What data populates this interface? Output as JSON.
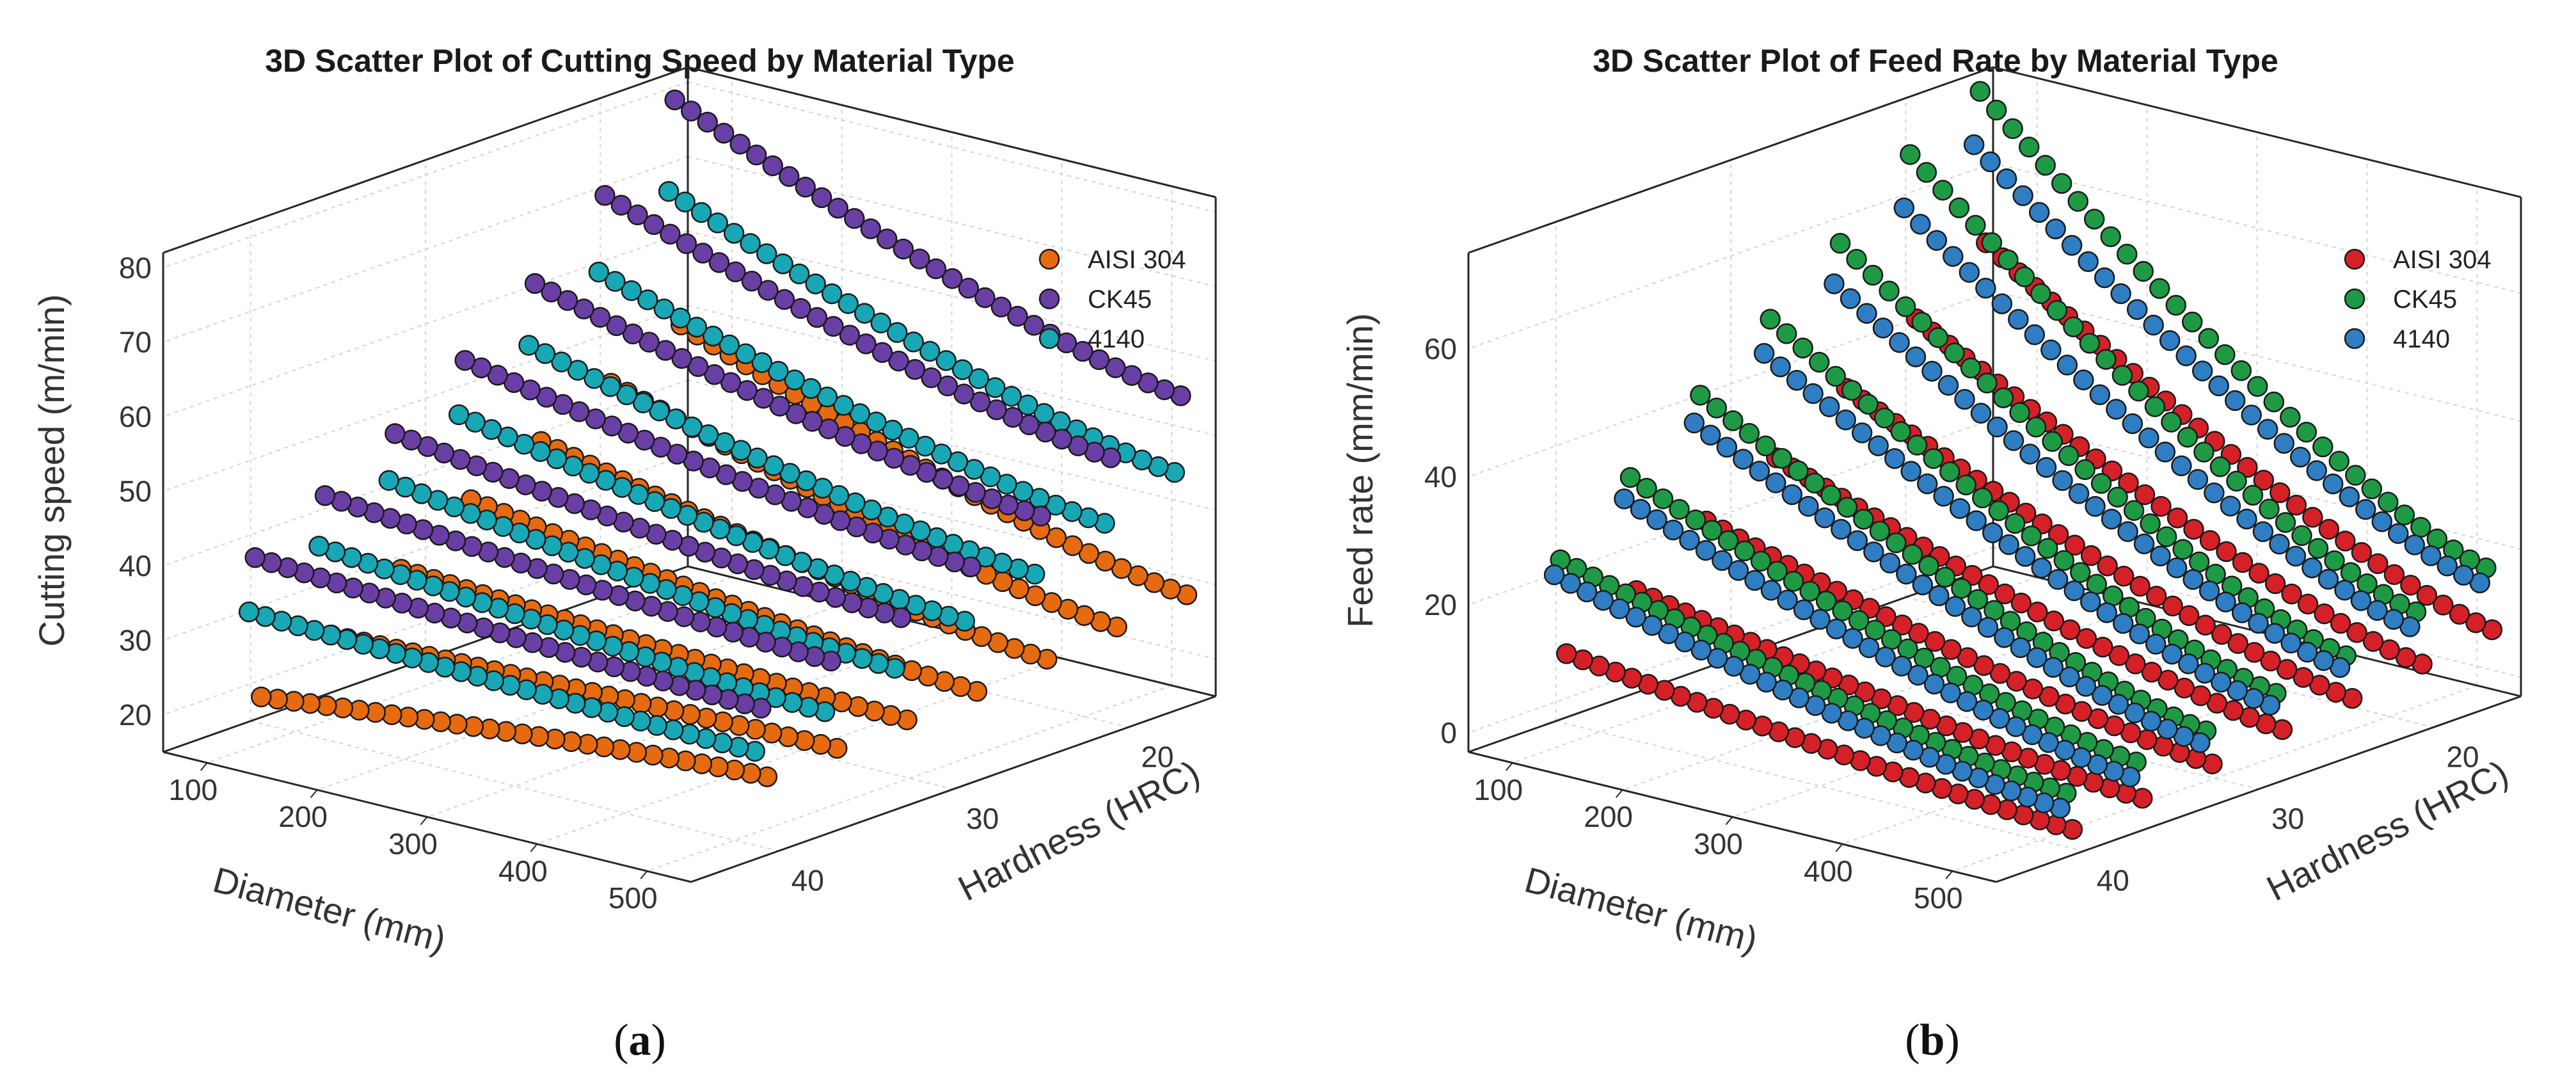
{
  "chart_data": [
    {
      "type": "scatter",
      "title": "3D Scatter Plot of Cutting Speed by Material Type",
      "xlabel": "Diameter (mm)",
      "ylabel": "Hardness (HRC)",
      "zlabel": "Cutting speed (m/min)",
      "xlim": [
        60,
        540
      ],
      "ylim": [
        15,
        45
      ],
      "zlim": [
        15,
        82
      ],
      "xticks": [
        "100",
        "200",
        "300",
        "400",
        "500"
      ],
      "yticks": [
        "20",
        "30",
        "40"
      ],
      "zticks": [
        "20",
        "30",
        "40",
        "50",
        "60",
        "70",
        "80"
      ],
      "legend_position": "top-right",
      "caption_letter": "a",
      "series": [
        {
          "name": "AISI 304",
          "color": "#E66A10",
          "x": [
            80,
            540
          ],
          "hardness": [
            17,
            21,
            25,
            29,
            33,
            37,
            41
          ],
          "z_at_x_min": [
            49.5,
            45,
            40.5,
            36,
            30,
            24.5,
            19.5
          ],
          "z_at_x_max": [
            30,
            29,
            28,
            27,
            26.5,
            26,
            25.5
          ]
        },
        {
          "name": "CK45",
          "color": "#6A3FA5",
          "x": [
            80,
            540
          ],
          "hardness": [
            17,
            21,
            25,
            29,
            33,
            37,
            41
          ],
          "z_at_x_min": [
            80,
            70.5,
            62,
            55,
            48.5,
            43.5,
            38.5
          ],
          "z_at_x_max": [
            57,
            52,
            47.5,
            44,
            40.5,
            38,
            35
          ]
        },
        {
          "name": "4140",
          "color": "#18A7B5",
          "x": [
            80,
            540
          ],
          "hardness": [
            17,
            21,
            25,
            29,
            33,
            37,
            41
          ],
          "z_at_x_min": [
            68,
            60.5,
            54,
            48,
            42.5,
            37,
            31.5
          ],
          "z_at_x_max": [
            47,
            43.5,
            40,
            37,
            34,
            31.5,
            29.5
          ]
        }
      ]
    },
    {
      "type": "scatter",
      "title": "3D Scatter Plot of Feed Rate by Material Type",
      "xlabel": "Diameter (mm)",
      "ylabel": "Hardness (HRC)",
      "zlabel": "Feed rate (mm/min)",
      "xlim": [
        60,
        540
      ],
      "ylim": [
        15,
        45
      ],
      "zlim": [
        -3,
        75
      ],
      "xticks": [
        "100",
        "200",
        "300",
        "400",
        "500"
      ],
      "yticks": [
        "20",
        "30",
        "40"
      ],
      "zticks": [
        "0",
        "20",
        "40",
        "60"
      ],
      "legend_position": "top-right",
      "caption_letter": "b",
      "series": [
        {
          "name": "AISI 304",
          "color": "#D62027",
          "x": [
            80,
            540
          ],
          "hardness": [
            17,
            21,
            25,
            29,
            33,
            37,
            41
          ],
          "z_at_x_min": [
            50,
            42,
            35,
            28,
            22,
            15,
            9
          ],
          "z_at_x_max": [
            9,
            7.5,
            6,
            5,
            3.5,
            2,
            1
          ]
        },
        {
          "name": "CK45",
          "color": "#1E9A45",
          "x": [
            80,
            540
          ],
          "hardness": [
            17,
            21,
            25,
            29,
            33,
            37,
            41
          ],
          "z_at_x_min": [
            74,
            68,
            58,
            50,
            42,
            33,
            24
          ],
          "z_at_x_max": [
            19,
            16,
            13,
            11,
            9,
            8,
            7
          ]
        },
        {
          "name": "4140",
          "color": "#2F7DC2",
          "x": [
            80,
            540
          ],
          "hardness": [
            17,
            21,
            25,
            29,
            33,
            37,
            41
          ],
          "z_at_x_min": [
            66,
            60,
            52,
            45,
            38,
            30,
            22
          ],
          "z_at_x_max": [
            17,
            14,
            11.5,
            9.5,
            7.5,
            6,
            5
          ]
        }
      ]
    }
  ]
}
